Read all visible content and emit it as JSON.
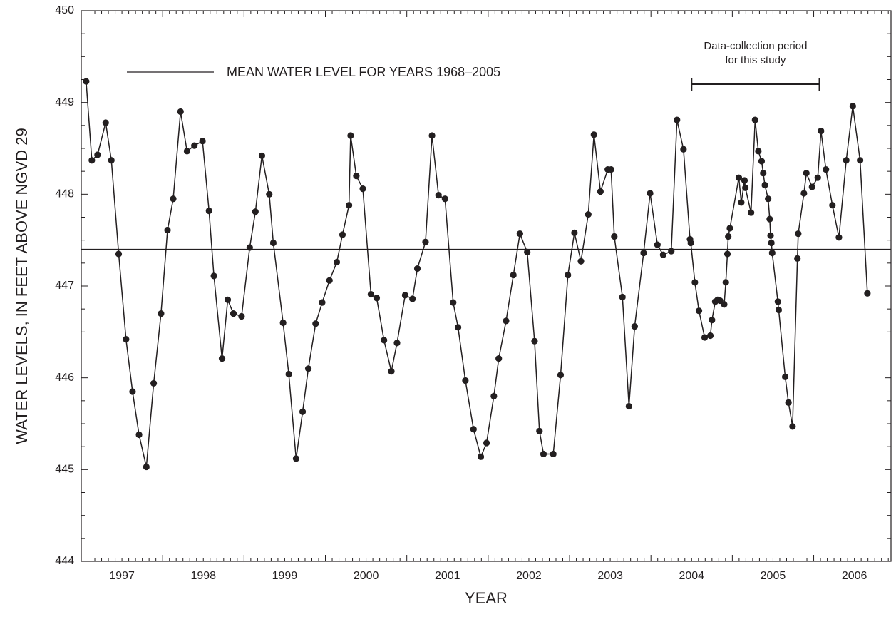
{
  "chart_data": {
    "type": "line",
    "x_label": "YEAR",
    "y_label": "WATER LEVELS, IN FEET ABOVE NGVD 29",
    "xlim": [
      1997,
      2006.95
    ],
    "xticks": [
      {
        "value": 1997.5,
        "label": "1997"
      },
      {
        "value": 1998.5,
        "label": "1998"
      },
      {
        "value": 1999.5,
        "label": "1999"
      },
      {
        "value": 2000.5,
        "label": "2000"
      },
      {
        "value": 2001.5,
        "label": "2001"
      },
      {
        "value": 2002.5,
        "label": "2002"
      },
      {
        "value": 2003.5,
        "label": "2003"
      },
      {
        "value": 2004.5,
        "label": "2004"
      },
      {
        "value": 2005.5,
        "label": "2005"
      },
      {
        "value": 2006.5,
        "label": "2006"
      }
    ],
    "ylim": [
      444,
      450
    ],
    "yticks": [
      444,
      445,
      446,
      447,
      448,
      449,
      450
    ],
    "x": [
      1997.06,
      1997.13,
      1997.2,
      1997.3,
      1997.37,
      1997.46,
      1997.55,
      1997.63,
      1997.71,
      1997.8,
      1997.89,
      1997.98,
      1998.06,
      1998.13,
      1998.22,
      1998.3,
      1998.39,
      1998.49,
      1998.57,
      1998.63,
      1998.73,
      1998.8,
      1998.87,
      1998.97,
      1999.07,
      1999.14,
      1999.22,
      1999.31,
      1999.36,
      1999.48,
      1999.55,
      1999.64,
      1999.72,
      1999.79,
      1999.88,
      1999.96,
      2000.05,
      2000.14,
      2000.21,
      2000.29,
      2000.31,
      2000.38,
      2000.46,
      2000.56,
      2000.63,
      2000.72,
      2000.81,
      2000.88,
      2000.98,
      2001.07,
      2001.13,
      2001.23,
      2001.31,
      2001.39,
      2001.47,
      2001.57,
      2001.63,
      2001.72,
      2001.82,
      2001.91,
      2001.98,
      2002.07,
      2002.13,
      2002.22,
      2002.31,
      2002.39,
      2002.48,
      2002.57,
      2002.63,
      2002.68,
      2002.8,
      2002.89,
      2002.98,
      2003.06,
      2003.14,
      2003.23,
      2003.3,
      2003.38,
      2003.47,
      2003.51,
      2003.55,
      2003.65,
      2003.73,
      2003.8,
      2003.91,
      2003.99,
      2004.08,
      2004.15,
      2004.25,
      2004.32,
      2004.4,
      2004.48,
      2004.49,
      2004.54,
      2004.59,
      2004.66,
      2004.73,
      2004.75,
      2004.79,
      2004.82,
      2004.85,
      2004.9,
      2004.92,
      2004.94,
      2004.95,
      2004.97,
      2005.08,
      2005.11,
      2005.15,
      2005.16,
      2005.23,
      2005.28,
      2005.32,
      2005.36,
      2005.38,
      2005.4,
      2005.44,
      2005.46,
      2005.47,
      2005.48,
      2005.49,
      2005.56,
      2005.57,
      2005.65,
      2005.69,
      2005.74,
      2005.8,
      2005.81,
      2005.88,
      2005.91,
      2005.98,
      2006.05,
      2006.09,
      2006.15,
      2006.23,
      2006.31,
      2006.4,
      2006.48,
      2006.57,
      2006.66
    ],
    "series": [
      {
        "color": "#231f20",
        "values": [
          449.23,
          448.37,
          448.43,
          448.78,
          448.37,
          447.35,
          446.42,
          445.85,
          445.38,
          445.03,
          445.94,
          446.7,
          447.61,
          447.95,
          448.9,
          448.47,
          448.53,
          448.58,
          447.82,
          447.11,
          446.21,
          446.85,
          446.7,
          446.67,
          447.42,
          447.81,
          448.42,
          448.0,
          447.47,
          446.6,
          446.04,
          445.12,
          445.63,
          446.1,
          446.59,
          446.82,
          447.06,
          447.26,
          447.56,
          447.88,
          448.64,
          448.2,
          448.06,
          446.91,
          446.87,
          446.41,
          446.07,
          446.38,
          446.9,
          446.86,
          447.19,
          447.48,
          448.64,
          447.99,
          447.95,
          446.82,
          446.55,
          445.97,
          445.44,
          445.14,
          445.29,
          445.8,
          446.21,
          446.62,
          447.12,
          447.57,
          447.37,
          446.4,
          445.42,
          445.17,
          445.17,
          446.03,
          447.12,
          447.58,
          447.27,
          447.78,
          448.65,
          448.03,
          448.27,
          448.27,
          447.54,
          446.88,
          445.69,
          446.56,
          447.36,
          448.01,
          447.45,
          447.34,
          447.38,
          448.81,
          448.49,
          447.51,
          447.47,
          447.04,
          446.73,
          446.44,
          446.46,
          446.63,
          446.83,
          446.85,
          446.84,
          446.8,
          447.04,
          447.35,
          447.54,
          447.63,
          448.18,
          447.91,
          448.15,
          448.07,
          447.8,
          448.81,
          448.47,
          448.36,
          448.23,
          448.1,
          447.95,
          447.73,
          447.55,
          447.47,
          447.36,
          446.83,
          446.74,
          446.01,
          445.73,
          445.47,
          447.3,
          447.57,
          448.01,
          448.23,
          448.08,
          448.18,
          448.69,
          448.27,
          447.88,
          447.53,
          448.37,
          448.96,
          448.37,
          446.92
        ]
      }
    ],
    "reference_line": {
      "value": 447.4,
      "label": "MEAN WATER LEVEL FOR YEARS 1968–2005"
    },
    "period": {
      "lines": [
        "Data-collection period",
        "for this study"
      ],
      "start": 2004.5,
      "end": 2006.07
    }
  }
}
